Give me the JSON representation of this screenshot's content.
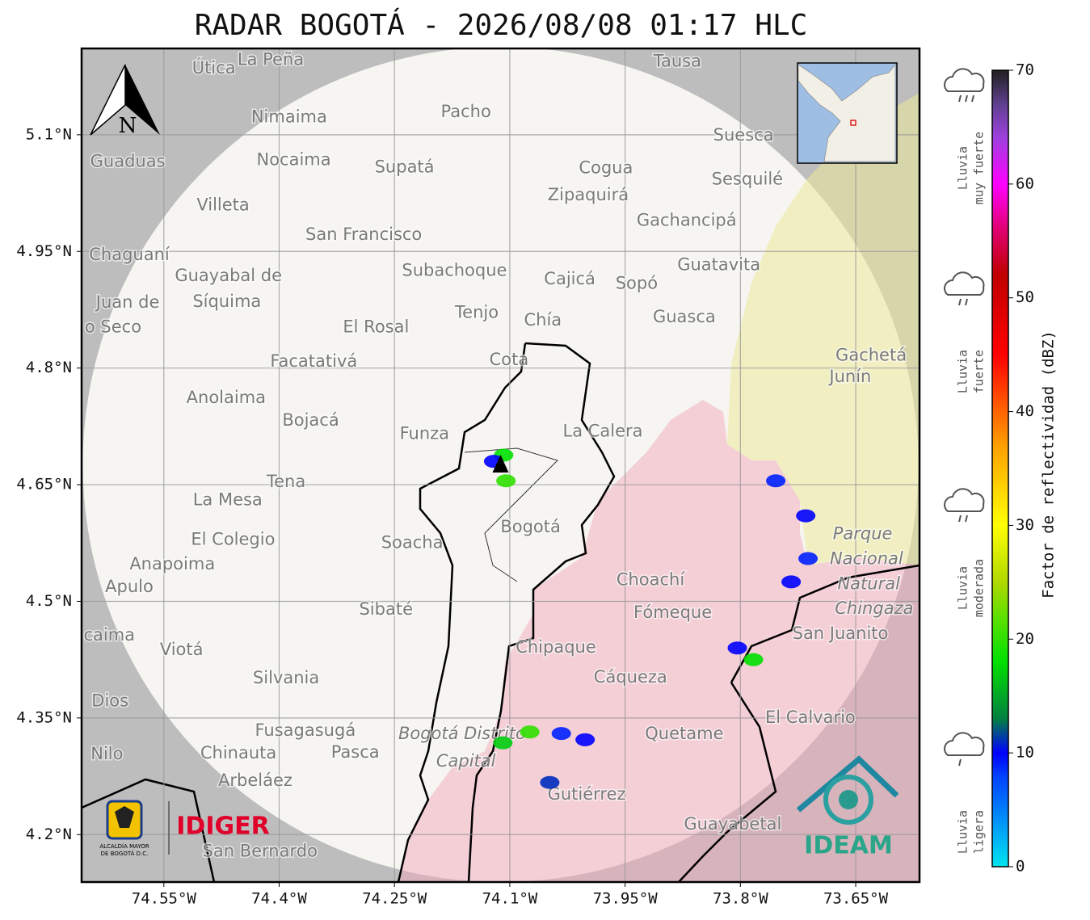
{
  "title": "RADAR BOGOTÁ - 2026/08/08 01:17 HLC",
  "map": {
    "xlim": [
      -74.657,
      -73.567
    ],
    "ylim": [
      4.139,
      5.211
    ],
    "xticks": [
      {
        "value": -74.55,
        "label": "74.55°W"
      },
      {
        "value": -74.4,
        "label": "74.4°W"
      },
      {
        "value": -74.25,
        "label": "74.25°W"
      },
      {
        "value": -74.1,
        "label": "74.1°W"
      },
      {
        "value": -73.95,
        "label": "73.95°W"
      },
      {
        "value": -73.8,
        "label": "73.8°W"
      },
      {
        "value": -73.65,
        "label": "73.65°W"
      }
    ],
    "yticks": [
      {
        "value": 5.1,
        "label": "5.1°N"
      },
      {
        "value": 4.95,
        "label": "4.95°N"
      },
      {
        "value": 4.8,
        "label": "4.8°N"
      },
      {
        "value": 4.65,
        "label": "4.65°N"
      },
      {
        "value": 4.5,
        "label": "4.5°N"
      },
      {
        "value": 4.35,
        "label": "4.35°N"
      },
      {
        "value": 4.2,
        "label": "4.2°N"
      }
    ],
    "grid": true,
    "radar": {
      "lon": -74.112,
      "lat": 4.676
    },
    "north_label": "N",
    "places": [
      {
        "name": "Útica",
        "lon": -74.485,
        "lat": 5.185
      },
      {
        "name": "La Peña",
        "lon": -74.411,
        "lat": 5.196
      },
      {
        "name": "Tausa",
        "lon": -73.882,
        "lat": 5.194
      },
      {
        "name": "Pacho",
        "lon": -74.157,
        "lat": 5.129
      },
      {
        "name": "Nimaima",
        "lon": -74.387,
        "lat": 5.122
      },
      {
        "name": "Guaduas",
        "lon": -74.597,
        "lat": 5.065
      },
      {
        "name": "Nocaima",
        "lon": -74.381,
        "lat": 5.067
      },
      {
        "name": "Supatá",
        "lon": -74.237,
        "lat": 5.058
      },
      {
        "name": "Cogua",
        "lon": -73.975,
        "lat": 5.057
      },
      {
        "name": "Suesca",
        "lon": -73.796,
        "lat": 5.099
      },
      {
        "name": "Sesquilé",
        "lon": -73.791,
        "lat": 5.042
      },
      {
        "name": "Zipaquirá",
        "lon": -73.998,
        "lat": 5.022
      },
      {
        "name": "Villeta",
        "lon": -74.473,
        "lat": 5.009
      },
      {
        "name": "Gachancipá",
        "lon": -73.87,
        "lat": 4.989
      },
      {
        "name": "San Francisco",
        "lon": -74.29,
        "lat": 4.971
      },
      {
        "name": "Chaguaní",
        "lon": -74.595,
        "lat": 4.945
      },
      {
        "name": "Guatavita",
        "lon": -73.828,
        "lat": 4.932
      },
      {
        "name": "Subachoque",
        "lon": -74.172,
        "lat": 4.925
      },
      {
        "name": "Cajicá",
        "lon": -74.022,
        "lat": 4.914
      },
      {
        "name": "Sopó",
        "lon": -73.935,
        "lat": 4.908
      },
      {
        "name": "Guayabal de",
        "lon": -74.466,
        "lat": 4.918
      },
      {
        "name": "Síquima",
        "lon": -74.468,
        "lat": 4.885
      },
      {
        "name": "Tenjo",
        "lon": -74.143,
        "lat": 4.871
      },
      {
        "name": "Chía",
        "lon": -74.057,
        "lat": 4.861
      },
      {
        "name": "Guasca",
        "lon": -73.873,
        "lat": 4.865
      },
      {
        "name": "El Rosal",
        "lon": -74.274,
        "lat": 4.852
      },
      {
        "name": "Juan de",
        "lon": -74.597,
        "lat": 4.884
      },
      {
        "name": "o Seco",
        "lon": -74.616,
        "lat": 4.852
      },
      {
        "name": "Facatativá",
        "lon": -74.355,
        "lat": 4.808
      },
      {
        "name": "Cota",
        "lon": -74.101,
        "lat": 4.81
      },
      {
        "name": "Gachetá",
        "lon": -73.63,
        "lat": 4.816
      },
      {
        "name": "Junín",
        "lon": -73.657,
        "lat": 4.788
      },
      {
        "name": "Anolaima",
        "lon": -74.469,
        "lat": 4.761
      },
      {
        "name": "Bojacá",
        "lon": -74.359,
        "lat": 4.732
      },
      {
        "name": "Funza",
        "lon": -74.211,
        "lat": 4.715
      },
      {
        "name": "La Calera",
        "lon": -73.979,
        "lat": 4.718
      },
      {
        "name": "Tena",
        "lon": -74.391,
        "lat": 4.653
      },
      {
        "name": "La Mesa",
        "lon": -74.467,
        "lat": 4.63
      },
      {
        "name": "Bogotá",
        "lon": -74.073,
        "lat": 4.595
      },
      {
        "name": "Soacha",
        "lon": -74.227,
        "lat": 4.575
      },
      {
        "name": "El Colegio",
        "lon": -74.46,
        "lat": 4.579
      },
      {
        "name": "Parque",
        "lon": -73.641,
        "lat": 4.586,
        "kind": "park"
      },
      {
        "name": "Nacional",
        "lon": -73.636,
        "lat": 4.554,
        "kind": "park"
      },
      {
        "name": "Natural",
        "lon": -73.633,
        "lat": 4.522,
        "kind": "park"
      },
      {
        "name": "Chingaza",
        "lon": -73.626,
        "lat": 4.49,
        "kind": "park"
      },
      {
        "name": "Anapoima",
        "lon": -74.539,
        "lat": 4.547
      },
      {
        "name": "Apulo",
        "lon": -74.595,
        "lat": 4.518
      },
      {
        "name": "Choachí",
        "lon": -73.917,
        "lat": 4.527
      },
      {
        "name": "Sibaté",
        "lon": -74.261,
        "lat": 4.489
      },
      {
        "name": "Fómeque",
        "lon": -73.888,
        "lat": 4.485
      },
      {
        "name": "San Juanito",
        "lon": -73.67,
        "lat": 4.458
      },
      {
        "name": "caima",
        "lon": -74.621,
        "lat": 4.456
      },
      {
        "name": "Viotá",
        "lon": -74.527,
        "lat": 4.437
      },
      {
        "name": "Chipaque",
        "lon": -74.04,
        "lat": 4.44
      },
      {
        "name": "Cáqueza",
        "lon": -73.943,
        "lat": 4.402
      },
      {
        "name": "Silvania",
        "lon": -74.391,
        "lat": 4.401
      },
      {
        "name": "Dios",
        "lon": -74.62,
        "lat": 4.371
      },
      {
        "name": "El Calvario",
        "lon": -73.709,
        "lat": 4.35
      },
      {
        "name": "Fusagasugá",
        "lon": -74.366,
        "lat": 4.333
      },
      {
        "name": "Quetame",
        "lon": -73.873,
        "lat": 4.329
      },
      {
        "name": "Bogotá Distrito",
        "lon": -74.162,
        "lat": 4.329,
        "kind": "district"
      },
      {
        "name": "Capital",
        "lon": -74.157,
        "lat": 4.294,
        "kind": "district"
      },
      {
        "name": "Nilo",
        "lon": -74.624,
        "lat": 4.303
      },
      {
        "name": "Chinauta",
        "lon": -74.453,
        "lat": 4.304
      },
      {
        "name": "Pasca",
        "lon": -74.301,
        "lat": 4.305
      },
      {
        "name": "Arbeláez",
        "lon": -74.431,
        "lat": 4.269
      },
      {
        "name": "Gutiérrez",
        "lon": -74.0,
        "lat": 4.251
      },
      {
        "name": "Guayabetal",
        "lon": -73.81,
        "lat": 4.213
      },
      {
        "name": "San Bernardo",
        "lon": -74.425,
        "lat": 4.178
      }
    ],
    "echoes": [
      {
        "lon": -74.108,
        "lat": 4.688,
        "dbz": 18
      },
      {
        "lon": -74.121,
        "lat": 4.68,
        "dbz": 10
      },
      {
        "lon": -74.105,
        "lat": 4.655,
        "dbz": 20
      },
      {
        "lon": -73.754,
        "lat": 4.655,
        "dbz": 9
      },
      {
        "lon": -73.715,
        "lat": 4.61,
        "dbz": 10
      },
      {
        "lon": -73.712,
        "lat": 4.555,
        "dbz": 9
      },
      {
        "lon": -73.734,
        "lat": 4.525,
        "dbz": 10
      },
      {
        "lon": -73.804,
        "lat": 4.44,
        "dbz": 10
      },
      {
        "lon": -73.783,
        "lat": 4.425,
        "dbz": 18
      },
      {
        "lon": -74.002,
        "lat": 4.322,
        "dbz": 10
      },
      {
        "lon": -74.033,
        "lat": 4.33,
        "dbz": 9
      },
      {
        "lon": -74.109,
        "lat": 4.318,
        "dbz": 17
      },
      {
        "lon": -74.048,
        "lat": 4.267,
        "dbz": 11
      },
      {
        "lon": -74.074,
        "lat": 4.332,
        "dbz": 20
      }
    ]
  },
  "colorbar": {
    "label": "Factor de reflectividad (dBZ)",
    "lim": [
      0,
      70
    ],
    "ticks": [
      0,
      10,
      20,
      30,
      40,
      50,
      60,
      70
    ],
    "stops": [
      {
        "value": 0,
        "color": "#00e5f0"
      },
      {
        "value": 8,
        "color": "#0040ff"
      },
      {
        "value": 10,
        "color": "#0000ff"
      },
      {
        "value": 13,
        "color": "#008040"
      },
      {
        "value": 18,
        "color": "#00e000"
      },
      {
        "value": 22,
        "color": "#60e000"
      },
      {
        "value": 25,
        "color": "#b0d800"
      },
      {
        "value": 30,
        "color": "#ffff00"
      },
      {
        "value": 37,
        "color": "#ffa000"
      },
      {
        "value": 45,
        "color": "#ff0000"
      },
      {
        "value": 52,
        "color": "#c00000"
      },
      {
        "value": 56,
        "color": "#e00070"
      },
      {
        "value": 60,
        "color": "#ff00ff"
      },
      {
        "value": 64,
        "color": "#a040e0"
      },
      {
        "value": 67,
        "color": "#604090"
      },
      {
        "value": 70,
        "color": "#202020"
      }
    ]
  },
  "rain_levels": [
    {
      "lines": [
        "Lluvia",
        "muy fuerte"
      ]
    },
    {
      "lines": [
        "Lluvia",
        "fuerte"
      ]
    },
    {
      "lines": [
        "Lluvia",
        "moderada"
      ]
    },
    {
      "lines": [
        "Lluvia",
        "ligera"
      ]
    }
  ],
  "logos": {
    "alcaldia": [
      "ALCALDÍA MAYOR",
      "DE BOGOTÁ D.C."
    ],
    "idiger": "IDIGER",
    "ideam": "IDEAM"
  }
}
